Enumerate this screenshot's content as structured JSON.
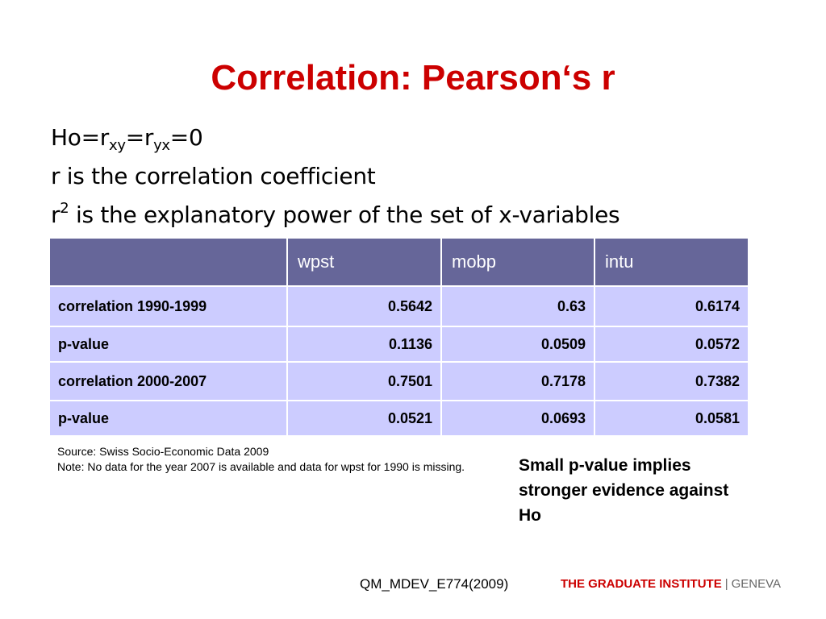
{
  "title": "Correlation: Pearson‘s r",
  "hypothesis": {
    "prefix": "Ho=r",
    "sub1": "xy",
    "mid": "=r",
    "sub2": "yx",
    "suffix": "=0"
  },
  "line2": "r is the correlation coefficient",
  "line3": {
    "base": "r",
    "sup": "2",
    "text": " is the explanatory power of the set of x-variables"
  },
  "table": {
    "headers": [
      "",
      "wpst",
      "mobp",
      "intu"
    ],
    "rows": [
      {
        "label": "correlation 1990-1999",
        "values": [
          "0.5642",
          "0.63",
          "0.6174"
        ]
      },
      {
        "label": "p-value",
        "values": [
          "0.1136",
          "0.0509",
          "0.0572"
        ]
      },
      {
        "label": "correlation 2000-2007",
        "values": [
          "0.7501",
          "0.7178",
          "0.7382"
        ]
      },
      {
        "label": "p-value",
        "values": [
          "0.0521",
          "0.0693",
          "0.0581"
        ]
      }
    ]
  },
  "source_note": {
    "source": "Source: Swiss Socio-Economic Data 2009",
    "note": "Note: No data for the year 2007 is available and data for wpst for 1990 is missing."
  },
  "callout": "Small p-value implies stronger evidence against Ho",
  "footer": {
    "code": "QM_MDEV_E774(2009)",
    "logo_brand": "THE GRADUATE INSTITUTE",
    "logo_sep": "|",
    "logo_city": "GENEVA"
  },
  "colors": {
    "title": "#cc0000",
    "table_header_bg": "#666699",
    "table_body_bg": "#ccccff"
  }
}
